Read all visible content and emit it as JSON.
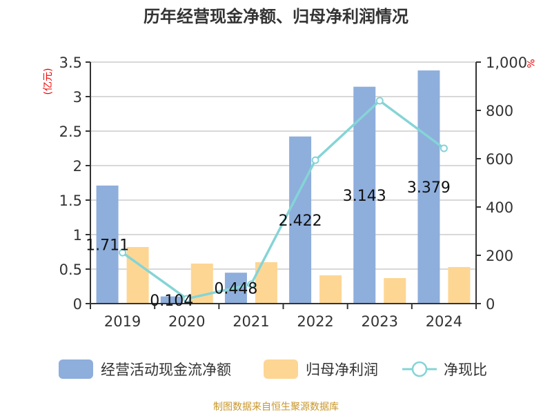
{
  "chart_data": {
    "type": "bar",
    "title": "历年经营现金净额、归母净利润情况",
    "categories": [
      "2019",
      "2020",
      "2021",
      "2022",
      "2023",
      "2024"
    ],
    "series": [
      {
        "name": "经营活动现金流净额",
        "axis": "left",
        "type": "bar",
        "color": "#8eaedc",
        "values": [
          1.711,
          0.104,
          0.448,
          2.422,
          3.143,
          3.379
        ],
        "labels": [
          "1.711",
          "0.104",
          "0.448",
          "2.422",
          "3.143",
          "3.379"
        ]
      },
      {
        "name": "归母净利润",
        "axis": "left",
        "type": "bar",
        "color": "#fdd694",
        "values": [
          0.82,
          0.58,
          0.6,
          0.41,
          0.37,
          0.53
        ]
      },
      {
        "name": "净现比",
        "axis": "right",
        "type": "line",
        "color": "#85d4d6",
        "values": [
          211,
          20,
          80,
          594,
          840,
          643
        ]
      }
    ],
    "left_axis": {
      "label": "(亿元)",
      "ylim": [
        0,
        3.5
      ],
      "ticks": [
        "0",
        "0.5",
        "1",
        "1.5",
        "2",
        "2.5",
        "3",
        "3.5"
      ]
    },
    "right_axis": {
      "label": "%",
      "ylim": [
        0,
        1000
      ],
      "ticks": [
        "0",
        "200",
        "400",
        "600",
        "800",
        "1,000"
      ]
    },
    "grid": true,
    "legend_position": "bottom",
    "source": "制图数据来自恒生聚源数据库"
  }
}
